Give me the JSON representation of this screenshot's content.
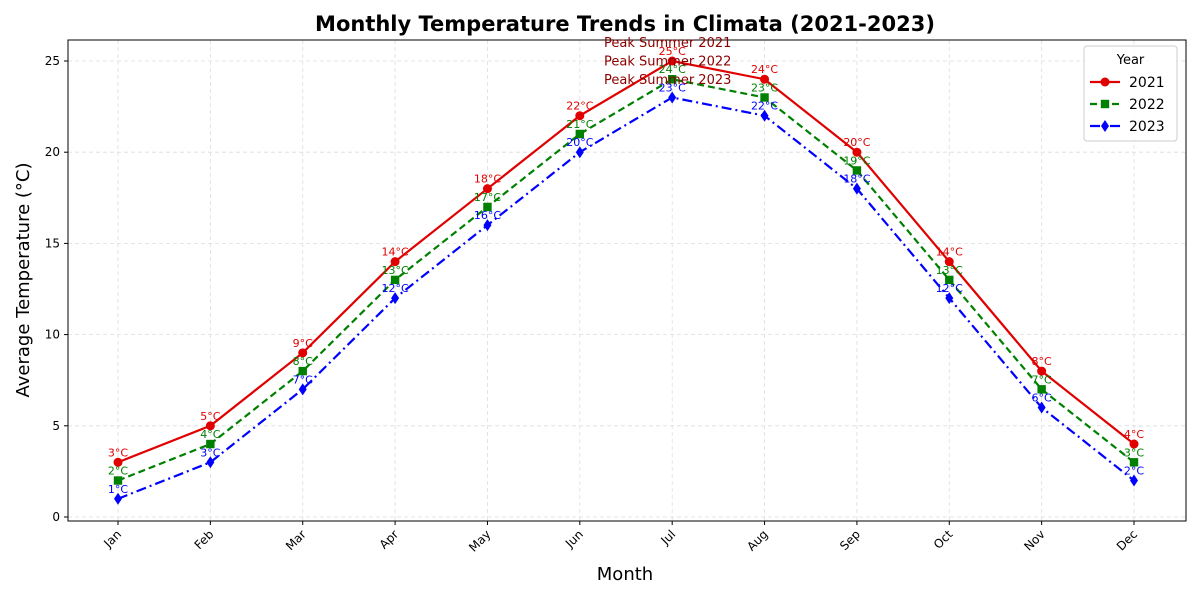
{
  "chart_data": {
    "type": "line",
    "title": "Monthly Temperature Trends in Climata (2021-2023)",
    "xlabel": "Month",
    "ylabel": "Average Temperature (°C)",
    "categories": [
      "Jan",
      "Feb",
      "Mar",
      "Apr",
      "May",
      "Jun",
      "Jul",
      "Aug",
      "Sep",
      "Oct",
      "Nov",
      "Dec"
    ],
    "ylim": [
      0,
      26
    ],
    "yticks": [
      0,
      5,
      10,
      15,
      20,
      25
    ],
    "grid": true,
    "legend": {
      "title": "Year",
      "position": "top-right"
    },
    "series": [
      {
        "name": "2021",
        "color": "#e00000",
        "marker": "circle",
        "linestyle": "solid",
        "values": [
          3,
          5,
          9,
          14,
          18,
          22,
          25,
          24,
          20,
          14,
          8,
          4
        ]
      },
      {
        "name": "2022",
        "color": "#008000",
        "marker": "square",
        "linestyle": "dashed",
        "values": [
          2,
          4,
          8,
          13,
          17,
          21,
          24,
          23,
          19,
          13,
          7,
          3
        ]
      },
      {
        "name": "2023",
        "color": "#0000ff",
        "marker": "diamond",
        "linestyle": "dashdot",
        "values": [
          1,
          3,
          7,
          12,
          16,
          20,
          23,
          22,
          18,
          12,
          6,
          2
        ]
      }
    ],
    "data_label_suffix": "°C",
    "annotations": [
      {
        "text": "Peak Summer 2021",
        "category": "Jul",
        "series": "2021"
      },
      {
        "text": "Peak Summer 2022",
        "category": "Jul",
        "series": "2022"
      },
      {
        "text": "Peak Summer 2023",
        "category": "Jul",
        "series": "2023"
      }
    ]
  }
}
